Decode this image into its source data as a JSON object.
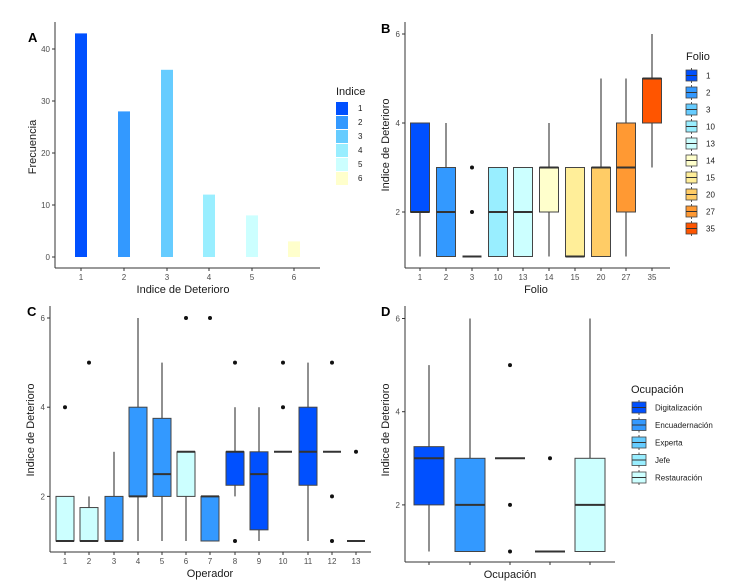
{
  "chart_data": [
    {
      "id": "A",
      "type": "bar",
      "tag": "A",
      "title": "",
      "xlabel": "Indice de Deterioro",
      "ylabel": "Frecuencia",
      "categories": [
        "1",
        "2",
        "3",
        "4",
        "5",
        "6"
      ],
      "values": [
        43,
        28,
        36,
        12,
        8,
        3
      ],
      "colors": [
        "#0050ff",
        "#3399ff",
        "#66ccff",
        "#99eeff",
        "#ccffff",
        "#ffffcc"
      ],
      "ylim": [
        0,
        45
      ],
      "yticks": [
        0,
        10,
        20,
        30,
        40
      ],
      "grid": false,
      "legend": {
        "title": "Indice",
        "position": "right",
        "entries": [
          "1",
          "2",
          "3",
          "4",
          "5",
          "6"
        ]
      }
    },
    {
      "id": "B",
      "type": "boxplot",
      "tag": "B",
      "title": "",
      "xlabel": "Folio",
      "ylabel": "Indice de Deterioro",
      "ylim": [
        1,
        6
      ],
      "yticks": [
        2,
        4,
        6
      ],
      "grid": false,
      "categories": [
        "1",
        "2",
        "3",
        "10",
        "13",
        "14",
        "15",
        "20",
        "27",
        "35"
      ],
      "boxes": [
        {
          "q1": 2,
          "median": 2,
          "q3": 4,
          "lower": 1,
          "upper": 4,
          "outliers": [],
          "color": "#0050ff"
        },
        {
          "q1": 1,
          "median": 2,
          "q3": 3,
          "lower": 1,
          "upper": 4,
          "outliers": [],
          "color": "#3399ff"
        },
        {
          "q1": 1,
          "median": 1,
          "q3": 1,
          "lower": 1,
          "upper": 1,
          "outliers": [
            2,
            3
          ],
          "color": "#66ccff"
        },
        {
          "q1": 1,
          "median": 2,
          "q3": 3,
          "lower": 1,
          "upper": 3,
          "outliers": [],
          "color": "#99eeff"
        },
        {
          "q1": 1,
          "median": 2,
          "q3": 3,
          "lower": 1,
          "upper": 3,
          "outliers": [],
          "color": "#ccffff"
        },
        {
          "q1": 2,
          "median": 3,
          "q3": 3,
          "lower": 1,
          "upper": 4,
          "outliers": [],
          "color": "#ffffcc"
        },
        {
          "q1": 1,
          "median": 1,
          "q3": 3,
          "lower": 1,
          "upper": 3,
          "outliers": [],
          "color": "#ffee99"
        },
        {
          "q1": 1,
          "median": 3,
          "q3": 3,
          "lower": 1,
          "upper": 5,
          "outliers": [],
          "color": "#ffcc66"
        },
        {
          "q1": 2,
          "median": 3,
          "q3": 4,
          "lower": 1,
          "upper": 5,
          "outliers": [],
          "color": "#ff9933"
        },
        {
          "q1": 4,
          "median": 5,
          "q3": 5,
          "lower": 3,
          "upper": 6,
          "outliers": [],
          "color": "#ff5500"
        }
      ],
      "legend": {
        "title": "Folio",
        "position": "right",
        "entries": [
          "1",
          "2",
          "3",
          "10",
          "13",
          "14",
          "15",
          "20",
          "27",
          "35"
        ]
      }
    },
    {
      "id": "C",
      "type": "boxplot",
      "tag": "C",
      "title": "",
      "xlabel": "Operador",
      "ylabel": "Indice de Deterioro",
      "ylim": [
        1,
        6
      ],
      "yticks": [
        2,
        4,
        6
      ],
      "grid": false,
      "categories": [
        "1",
        "2",
        "3",
        "4",
        "5",
        "6",
        "7",
        "8",
        "9",
        "10",
        "11",
        "12",
        "13"
      ],
      "boxes": [
        {
          "q1": 1,
          "median": 1,
          "q3": 2,
          "lower": 1,
          "upper": 2,
          "outliers": [
            4
          ],
          "color": "#ccffff"
        },
        {
          "q1": 1,
          "median": 1,
          "q3": 1.75,
          "lower": 1,
          "upper": 2,
          "outliers": [
            5
          ],
          "color": "#ccffff"
        },
        {
          "q1": 1,
          "median": 1,
          "q3": 2,
          "lower": 1,
          "upper": 3,
          "outliers": [],
          "color": "#3399ff"
        },
        {
          "q1": 2,
          "median": 2,
          "q3": 4,
          "lower": 1,
          "upper": 6,
          "outliers": [],
          "color": "#3399ff"
        },
        {
          "q1": 2,
          "median": 2.5,
          "q3": 3.75,
          "lower": 1,
          "upper": 5,
          "outliers": [],
          "color": "#3399ff"
        },
        {
          "q1": 2,
          "median": 3,
          "q3": 3,
          "lower": 1,
          "upper": 3,
          "outliers": [
            6
          ],
          "color": "#ccffff"
        },
        {
          "q1": 1,
          "median": 2,
          "q3": 2,
          "lower": 1,
          "upper": 2,
          "outliers": [
            6
          ],
          "color": "#3399ff"
        },
        {
          "q1": 2.25,
          "median": 3,
          "q3": 3,
          "lower": 2,
          "upper": 4,
          "outliers": [
            1,
            5
          ],
          "color": "#0050ff"
        },
        {
          "q1": 1.25,
          "median": 2.5,
          "q3": 3,
          "lower": 1,
          "upper": 4,
          "outliers": [],
          "color": "#0050ff"
        },
        {
          "q1": 3,
          "median": 3,
          "q3": 3,
          "lower": 3,
          "upper": 3,
          "outliers": [
            4,
            5
          ],
          "color": "#0050ff"
        },
        {
          "q1": 2.25,
          "median": 3,
          "q3": 4,
          "lower": 1,
          "upper": 5,
          "outliers": [],
          "color": "#0050ff"
        },
        {
          "q1": 3,
          "median": 3,
          "q3": 3,
          "lower": 3,
          "upper": 3,
          "outliers": [
            1,
            2,
            5
          ],
          "color": "#0050ff"
        },
        {
          "q1": 1,
          "median": 1,
          "q3": 1,
          "lower": 1,
          "upper": 1,
          "outliers": [
            3
          ],
          "color": "#0050ff"
        }
      ]
    },
    {
      "id": "D",
      "type": "boxplot",
      "tag": "D",
      "title": "",
      "xlabel": "Ocupación",
      "ylabel": "Indice de Deterioro",
      "ylim": [
        1,
        6
      ],
      "yticks": [
        2,
        4,
        6
      ],
      "grid": false,
      "categories": [
        "Digitalización",
        "Encuadernación",
        "Experta",
        "Jefe",
        "Restauración"
      ],
      "show_x_tick_labels": false,
      "boxes": [
        {
          "q1": 2,
          "median": 3,
          "q3": 3.25,
          "lower": 1,
          "upper": 5,
          "outliers": [],
          "color": "#0050ff"
        },
        {
          "q1": 1,
          "median": 2,
          "q3": 3,
          "lower": 1,
          "upper": 6,
          "outliers": [],
          "color": "#3399ff"
        },
        {
          "q1": 3,
          "median": 3,
          "q3": 3,
          "lower": 3,
          "upper": 3,
          "outliers": [
            1,
            2,
            5
          ],
          "color": "#66ccff"
        },
        {
          "q1": 1,
          "median": 1,
          "q3": 1,
          "lower": 1,
          "upper": 1,
          "outliers": [
            3
          ],
          "color": "#99eeff"
        },
        {
          "q1": 1,
          "median": 2,
          "q3": 3,
          "lower": 1,
          "upper": 6,
          "outliers": [],
          "color": "#ccffff"
        }
      ],
      "legend": {
        "title": "Ocupación",
        "position": "right",
        "entries": [
          "Digitalización",
          "Encuadernación",
          "Experta",
          "Jefe",
          "Restauración"
        ]
      }
    }
  ]
}
